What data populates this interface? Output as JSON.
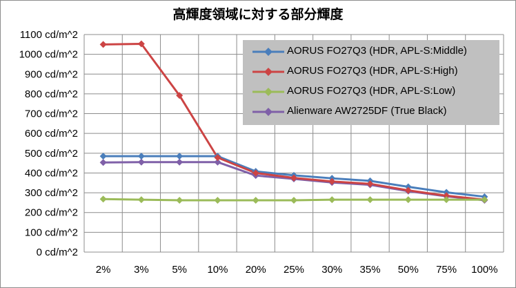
{
  "chart_data": {
    "type": "line",
    "title": "高輝度領域に対する部分輝度",
    "categories": [
      "2%",
      "3%",
      "5%",
      "10%",
      "20%",
      "25%",
      "30%",
      "35%",
      "50%",
      "75%",
      "100%"
    ],
    "ylim": [
      0,
      1100
    ],
    "yticks": [
      "0 cd/m^2",
      "100 cd/m^2",
      "200 cd/m^2",
      "300 cd/m^2",
      "400 cd/m^2",
      "500 cd/m^2",
      "600 cd/m^2",
      "700 cd/m^2",
      "800 cd/m^2",
      "900 cd/m^2",
      "1000 cd/m^2",
      "1100 cd/m^2"
    ],
    "grid": true,
    "legend_position": "top-right",
    "series": [
      {
        "name": "AORUS FO27Q3 (HDR, APL-S:Middle)",
        "color": "#4a7ebb",
        "values": [
          485,
          485,
          485,
          485,
          408,
          388,
          373,
          360,
          330,
          302,
          280
        ]
      },
      {
        "name": "AORUS FO27Q3 (HDR, APL-S:High)",
        "color": "#cc4444",
        "values": [
          1050,
          1053,
          792,
          478,
          400,
          375,
          357,
          345,
          312,
          285,
          265
        ]
      },
      {
        "name": "AORUS FO27Q3 (HDR, APL-S:Low)",
        "color": "#9bbb59",
        "values": [
          268,
          265,
          262,
          262,
          262,
          262,
          265,
          265,
          265,
          265,
          265
        ]
      },
      {
        "name": "Alienware AW2725DF (True Black)",
        "color": "#7f60a8",
        "values": [
          453,
          455,
          455,
          455,
          387,
          370,
          352,
          340,
          308,
          282,
          262
        ]
      }
    ]
  }
}
